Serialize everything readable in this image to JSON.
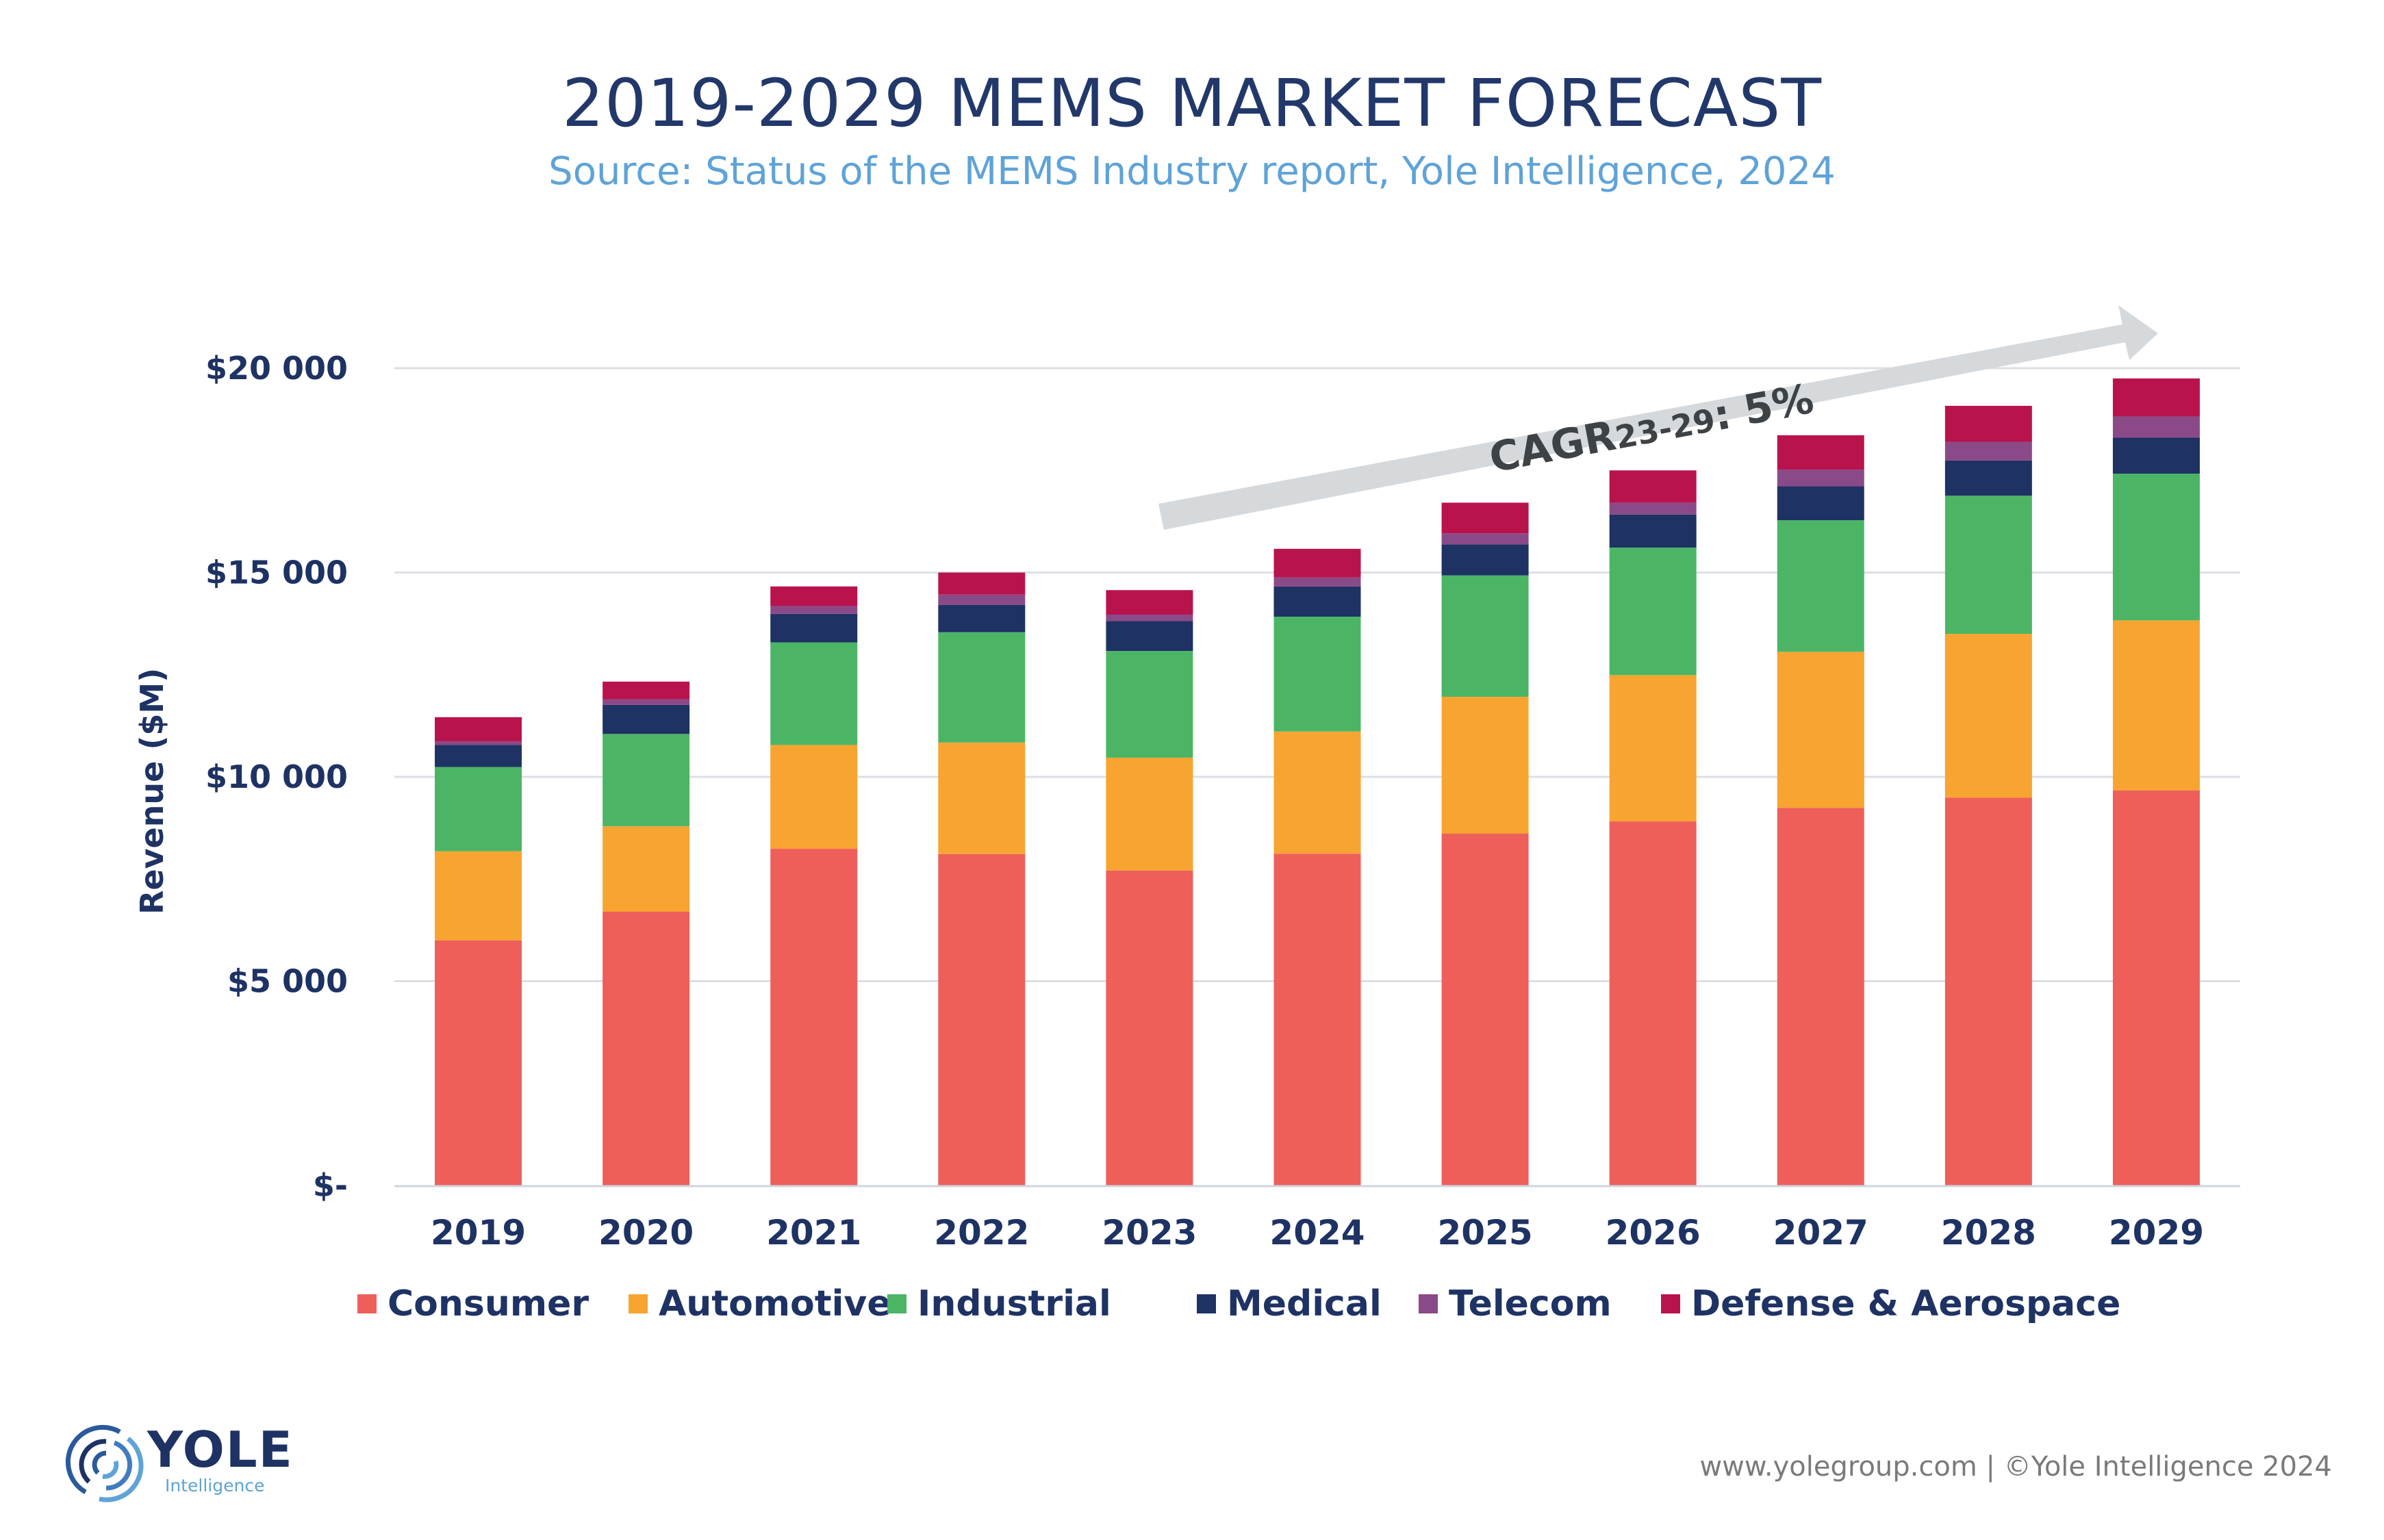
{
  "header": {
    "title": "2019-2029 MEMS MARKET FORECAST",
    "subtitle": "Source: Status of the MEMS Industry report, Yole Intelligence, 2024"
  },
  "chart_data": {
    "type": "bar",
    "stacked": true,
    "title": "2019-2029 MEMS MARKET FORECAST",
    "xlabel": "",
    "ylabel": "Revenue ($M)",
    "ylim": [
      0,
      20000
    ],
    "yticks": [
      0,
      5000,
      10000,
      15000,
      20000
    ],
    "ytick_labels": [
      "$-",
      "$5 000",
      "$10 000",
      "$15 000",
      "$20 000"
    ],
    "grid": true,
    "legend_position": "bottom",
    "categories": [
      "2019",
      "2020",
      "2021",
      "2022",
      "2023",
      "2024",
      "2025",
      "2026",
      "2027",
      "2028",
      "2029"
    ],
    "series": [
      {
        "name": "Consumer",
        "color": "#EE5F5A",
        "values": [
          6000,
          6700,
          8240,
          8110,
          7710,
          8120,
          8610,
          8910,
          9240,
          9490,
          9670
        ]
      },
      {
        "name": "Automotive",
        "color": "#F7A431",
        "values": [
          2180,
          2090,
          2540,
          2730,
          2760,
          2990,
          3350,
          3580,
          3820,
          4010,
          4160
        ]
      },
      {
        "name": "Industrial",
        "color": "#4BB565",
        "values": [
          2060,
          2260,
          2510,
          2700,
          2610,
          2810,
          2970,
          3120,
          3220,
          3380,
          3590
        ]
      },
      {
        "name": "Medical",
        "color": "#1E3264",
        "values": [
          540,
          710,
          700,
          670,
          730,
          740,
          760,
          810,
          830,
          860,
          880
        ]
      },
      {
        "name": "Telecom",
        "color": "#8A4A87",
        "values": [
          90,
          140,
          190,
          250,
          160,
          220,
          270,
          290,
          410,
          460,
          520
        ]
      },
      {
        "name": "Defense & Aerospace",
        "color": "#B9134D",
        "values": [
          590,
          430,
          480,
          540,
          600,
          700,
          750,
          790,
          840,
          880,
          930
        ]
      }
    ],
    "annotations": [
      {
        "text_main": "CAGR",
        "text_sub": "23-29",
        "text_value": ": 5%",
        "type": "trend-arrow"
      }
    ]
  },
  "footer": {
    "credit": "www.yolegroup.com | ©Yole Intelligence 2024"
  },
  "logo": {
    "word": "YOLE",
    "sub": "Intelligence"
  }
}
